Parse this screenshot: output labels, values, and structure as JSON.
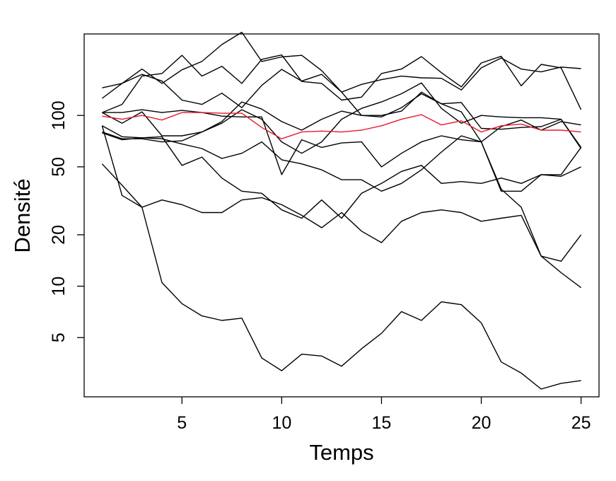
{
  "chart_data": {
    "type": "line",
    "title": "",
    "xlabel": "Temps",
    "ylabel": "Densité",
    "x": [
      1,
      2,
      3,
      4,
      5,
      6,
      7,
      8,
      9,
      10,
      11,
      12,
      13,
      14,
      15,
      16,
      17,
      18,
      19,
      20,
      21,
      22,
      23,
      24,
      25
    ],
    "xlim": [
      0.1,
      25.9
    ],
    "ylim": [
      2.25,
      300
    ],
    "yscale": "log",
    "xticks": [
      5,
      10,
      15,
      20,
      25
    ],
    "yticks": [
      5,
      10,
      20,
      50,
      100
    ],
    "grid": false,
    "legend": "none",
    "colors": {
      "series": "#000000",
      "mean": "#e8192c",
      "axis": "#000000"
    },
    "series": [
      {
        "values": [
          145,
          154,
          187,
          154,
          185,
          207,
          260,
          307,
          207,
          220,
          225,
          183,
          137,
          100,
          98,
          111,
          134,
          117,
          119,
          84,
          83,
          85,
          86,
          95,
          65
        ],
        "color": "#000000"
      },
      {
        "values": [
          104,
          90,
          105,
          76,
          76,
          80,
          92,
          120,
          109,
          92,
          82,
          95,
          106,
          100,
          100,
          106,
          137,
          117,
          105,
          70,
          86,
          94,
          82,
          92,
          88
        ],
        "color": "#000000"
      },
      {
        "values": [
          104,
          116,
          170,
          176,
          225,
          170,
          194,
          154,
          213,
          226,
          158,
          154,
          123,
          128,
          176,
          187,
          221,
          178,
          147,
          203,
          222,
          149,
          199,
          190,
          108
        ],
        "color": "#000000"
      },
      {
        "values": [
          126,
          154,
          174,
          159,
          123,
          116,
          135,
          111,
          150,
          186,
          159,
          174,
          137,
          152,
          162,
          170,
          166,
          165,
          141,
          190,
          217,
          187,
          180,
          192,
          188
        ],
        "color": "#000000"
      },
      {
        "values": [
          80,
          73,
          73,
          70,
          71,
          80,
          90,
          108,
          95,
          70,
          60,
          70,
          95,
          110,
          120,
          134,
          155,
          110,
          90,
          100,
          98,
          97,
          97,
          95,
          64
        ],
        "color": "#000000"
      },
      {
        "values": [
          79,
          72,
          74,
          75,
          51,
          57,
          43,
          36,
          35,
          28,
          25,
          32,
          25,
          35,
          40,
          47,
          51,
          40,
          41,
          40,
          43,
          40,
          45,
          44,
          50
        ],
        "color": "#000000"
      },
      {
        "values": [
          52,
          39,
          29,
          10.5,
          7.9,
          6.7,
          6.3,
          6.5,
          3.8,
          3.2,
          4.0,
          3.9,
          3.4,
          4.3,
          5.3,
          7.1,
          6.3,
          8.1,
          7.8,
          6.1,
          3.6,
          3.1,
          2.5,
          2.7,
          2.8
        ],
        "color": "#000000"
      },
      {
        "values": [
          87,
          34,
          29,
          32,
          30,
          27,
          27,
          32,
          33,
          30,
          26,
          22,
          27,
          21,
          18,
          24,
          27,
          28,
          27,
          24,
          25,
          26,
          15,
          12,
          9.8
        ],
        "color": "#000000"
      },
      {
        "values": [
          87,
          75,
          74,
          73,
          68,
          64,
          56,
          60,
          70,
          55,
          52,
          48,
          42,
          42,
          36,
          40,
          48,
          61,
          76,
          70,
          37,
          29,
          15,
          14,
          20
        ],
        "color": "#000000"
      },
      {
        "values": [
          104,
          104,
          108,
          104,
          107,
          104,
          99,
          98,
          98,
          45,
          72,
          65,
          69,
          70,
          50,
          60,
          70,
          76,
          72,
          70,
          36,
          36,
          45,
          45,
          65
        ],
        "color": "#000000"
      },
      {
        "values": [
          99,
          95,
          100,
          94,
          104,
          104,
          103,
          103,
          85,
          73,
          80,
          81,
          80,
          82,
          87,
          95,
          101,
          88,
          93,
          80,
          87,
          89,
          82,
          82,
          80
        ],
        "color": "#e8192c"
      }
    ]
  }
}
